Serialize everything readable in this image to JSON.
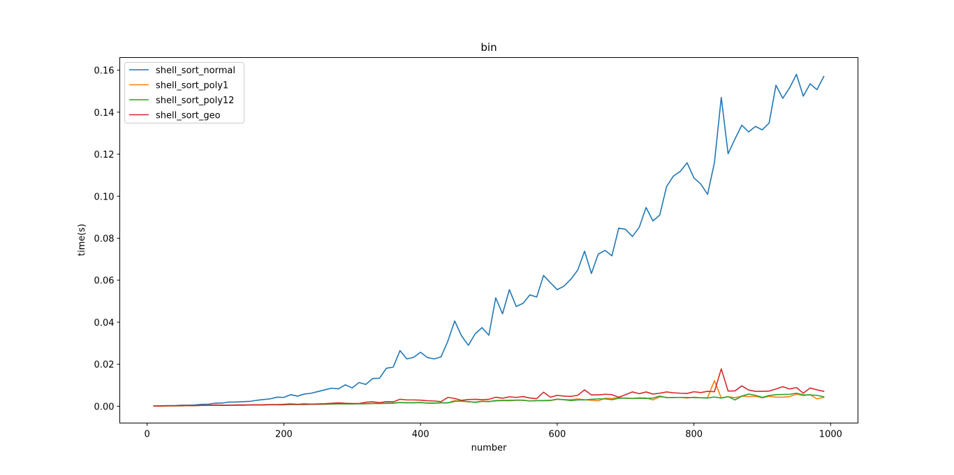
{
  "chart_data": {
    "type": "line",
    "title": "bin",
    "xlabel": "number",
    "ylabel": "time(s)",
    "xlim": [
      -40,
      1040
    ],
    "ylim": [
      -0.008,
      0.166
    ],
    "xticks": [
      0,
      200,
      400,
      600,
      800,
      1000
    ],
    "xtick_labels": [
      "0",
      "200",
      "400",
      "600",
      "800",
      "1000"
    ],
    "yticks": [
      0.0,
      0.02,
      0.04,
      0.06,
      0.08,
      0.1,
      0.12,
      0.14,
      0.16
    ],
    "ytick_labels": [
      "0.00",
      "0.02",
      "0.04",
      "0.06",
      "0.08",
      "0.10",
      "0.12",
      "0.14",
      "0.16"
    ],
    "grid": false,
    "legend_position": "top-left",
    "x": [
      10,
      20,
      30,
      40,
      50,
      60,
      70,
      80,
      90,
      100,
      110,
      120,
      130,
      140,
      150,
      160,
      170,
      180,
      190,
      200,
      210,
      220,
      230,
      240,
      250,
      260,
      270,
      280,
      290,
      300,
      310,
      320,
      330,
      340,
      350,
      360,
      370,
      380,
      390,
      400,
      410,
      420,
      430,
      440,
      450,
      460,
      470,
      480,
      490,
      500,
      510,
      520,
      530,
      540,
      550,
      560,
      570,
      580,
      590,
      600,
      610,
      620,
      630,
      640,
      650,
      660,
      670,
      680,
      690,
      700,
      710,
      720,
      730,
      740,
      750,
      760,
      770,
      780,
      790,
      800,
      810,
      820,
      830,
      840,
      850,
      860,
      870,
      880,
      890,
      900,
      910,
      920,
      930,
      940,
      950,
      960,
      970,
      980,
      990
    ],
    "series": [
      {
        "name": "shell_sort_normal",
        "color": "#1f77b4",
        "values": [
          0.0001,
          0.0002,
          0.0003,
          0.0003,
          0.0005,
          0.0005,
          0.0006,
          0.0009,
          0.001,
          0.0015,
          0.0015,
          0.002,
          0.002,
          0.0022,
          0.0023,
          0.0028,
          0.0032,
          0.0035,
          0.0043,
          0.0042,
          0.0055,
          0.0048,
          0.0058,
          0.0062,
          0.007,
          0.0078,
          0.0086,
          0.0083,
          0.0102,
          0.0087,
          0.0113,
          0.0104,
          0.0132,
          0.0133,
          0.0181,
          0.0186,
          0.0265,
          0.0225,
          0.0233,
          0.0257,
          0.0232,
          0.0225,
          0.0235,
          0.031,
          0.0406,
          0.0335,
          0.029,
          0.0345,
          0.0374,
          0.0338,
          0.0516,
          0.044,
          0.0555,
          0.0475,
          0.049,
          0.053,
          0.052,
          0.0623,
          0.0588,
          0.0555,
          0.0572,
          0.0605,
          0.0648,
          0.0738,
          0.0632,
          0.0724,
          0.0742,
          0.0716,
          0.0848,
          0.0842,
          0.0808,
          0.0852,
          0.0946,
          0.0882,
          0.091,
          0.1046,
          0.1096,
          0.1118,
          0.1159,
          0.1087,
          0.1058,
          0.1009,
          0.116,
          0.147,
          0.1202,
          0.1272,
          0.1338,
          0.1306,
          0.1332,
          0.1316,
          0.1348,
          0.1528,
          0.1466,
          0.1516,
          0.158,
          0.1476,
          0.1535,
          0.1507,
          0.157
        ]
      },
      {
        "name": "shell_sort_poly1",
        "color": "#ff7f0e",
        "values": [
          0.0001,
          0.0001,
          0.0002,
          0.0002,
          0.0002,
          0.0003,
          0.0003,
          0.0004,
          0.0004,
          0.0005,
          0.0004,
          0.0005,
          0.0005,
          0.0005,
          0.0006,
          0.0006,
          0.0006,
          0.0007,
          0.0007,
          0.0007,
          0.0008,
          0.0008,
          0.0008,
          0.0009,
          0.0009,
          0.001,
          0.001,
          0.0011,
          0.0011,
          0.0011,
          0.0012,
          0.0012,
          0.0013,
          0.0013,
          0.0013,
          0.0014,
          0.0017,
          0.0016,
          0.0016,
          0.0017,
          0.0015,
          0.0015,
          0.0016,
          0.0016,
          0.0027,
          0.0024,
          0.0021,
          0.002,
          0.0024,
          0.0023,
          0.0025,
          0.0027,
          0.0026,
          0.0029,
          0.0028,
          0.0025,
          0.0027,
          0.0026,
          0.0027,
          0.0033,
          0.0031,
          0.0031,
          0.0035,
          0.0031,
          0.0028,
          0.0026,
          0.0038,
          0.0037,
          0.0041,
          0.0038,
          0.0037,
          0.004,
          0.0039,
          0.003,
          0.0045,
          0.0042,
          0.0041,
          0.0042,
          0.0039,
          0.0043,
          0.004,
          0.0041,
          0.0122,
          0.0039,
          0.0045,
          0.0041,
          0.0048,
          0.0046,
          0.0047,
          0.004,
          0.0047,
          0.0043,
          0.0043,
          0.0046,
          0.0058,
          0.0051,
          0.0055,
          0.0035,
          0.0042
        ]
      },
      {
        "name": "shell_sort_poly12",
        "color": "#2ca02c",
        "values": [
          0.0001,
          0.0001,
          0.0002,
          0.0002,
          0.0002,
          0.0003,
          0.0003,
          0.0004,
          0.0004,
          0.0005,
          0.0004,
          0.0005,
          0.0005,
          0.0005,
          0.0006,
          0.0006,
          0.0006,
          0.0007,
          0.0007,
          0.0007,
          0.0008,
          0.0008,
          0.0008,
          0.0009,
          0.0009,
          0.001,
          0.0011,
          0.0012,
          0.0011,
          0.0011,
          0.0012,
          0.0012,
          0.0013,
          0.0013,
          0.0014,
          0.0015,
          0.0018,
          0.0017,
          0.0017,
          0.0018,
          0.0015,
          0.0015,
          0.0016,
          0.0016,
          0.0023,
          0.0025,
          0.0022,
          0.0018,
          0.0023,
          0.0022,
          0.0027,
          0.0028,
          0.0028,
          0.0029,
          0.0029,
          0.0025,
          0.0027,
          0.0027,
          0.0028,
          0.0034,
          0.0031,
          0.0027,
          0.003,
          0.003,
          0.0033,
          0.0035,
          0.0035,
          0.0031,
          0.0038,
          0.0039,
          0.0037,
          0.0038,
          0.0037,
          0.0039,
          0.0048,
          0.0041,
          0.0042,
          0.0042,
          0.0042,
          0.0041,
          0.004,
          0.0039,
          0.0044,
          0.0039,
          0.0046,
          0.003,
          0.0048,
          0.0058,
          0.0052,
          0.0042,
          0.0051,
          0.0055,
          0.0056,
          0.0057,
          0.0062,
          0.0054,
          0.0054,
          0.0052,
          0.0045
        ]
      },
      {
        "name": "shell_sort_geo",
        "color": "#d62728",
        "values": [
          0.0001,
          0.0001,
          0.0002,
          0.0002,
          0.0003,
          0.0003,
          0.0003,
          0.0004,
          0.0004,
          0.0006,
          0.0005,
          0.0005,
          0.0006,
          0.0006,
          0.0006,
          0.0007,
          0.0007,
          0.0008,
          0.0008,
          0.0009,
          0.0011,
          0.0009,
          0.0011,
          0.001,
          0.0011,
          0.0012,
          0.0014,
          0.0016,
          0.0014,
          0.0013,
          0.0013,
          0.0019,
          0.0021,
          0.0017,
          0.0022,
          0.0021,
          0.0033,
          0.003,
          0.003,
          0.0029,
          0.0026,
          0.0025,
          0.0022,
          0.0042,
          0.0037,
          0.0028,
          0.0032,
          0.0033,
          0.0031,
          0.0033,
          0.0043,
          0.0038,
          0.0045,
          0.0042,
          0.0046,
          0.0039,
          0.0036,
          0.0067,
          0.0043,
          0.0052,
          0.0048,
          0.0047,
          0.0052,
          0.0078,
          0.0054,
          0.0054,
          0.0057,
          0.0055,
          0.0043,
          0.0055,
          0.0068,
          0.006,
          0.0068,
          0.0058,
          0.0062,
          0.0068,
          0.0064,
          0.0062,
          0.0061,
          0.0069,
          0.0065,
          0.0071,
          0.0069,
          0.0178,
          0.0072,
          0.0073,
          0.0097,
          0.0077,
          0.0071,
          0.0071,
          0.0072,
          0.0082,
          0.0093,
          0.0082,
          0.0089,
          0.0062,
          0.0087,
          0.0078,
          0.0071
        ]
      }
    ]
  }
}
